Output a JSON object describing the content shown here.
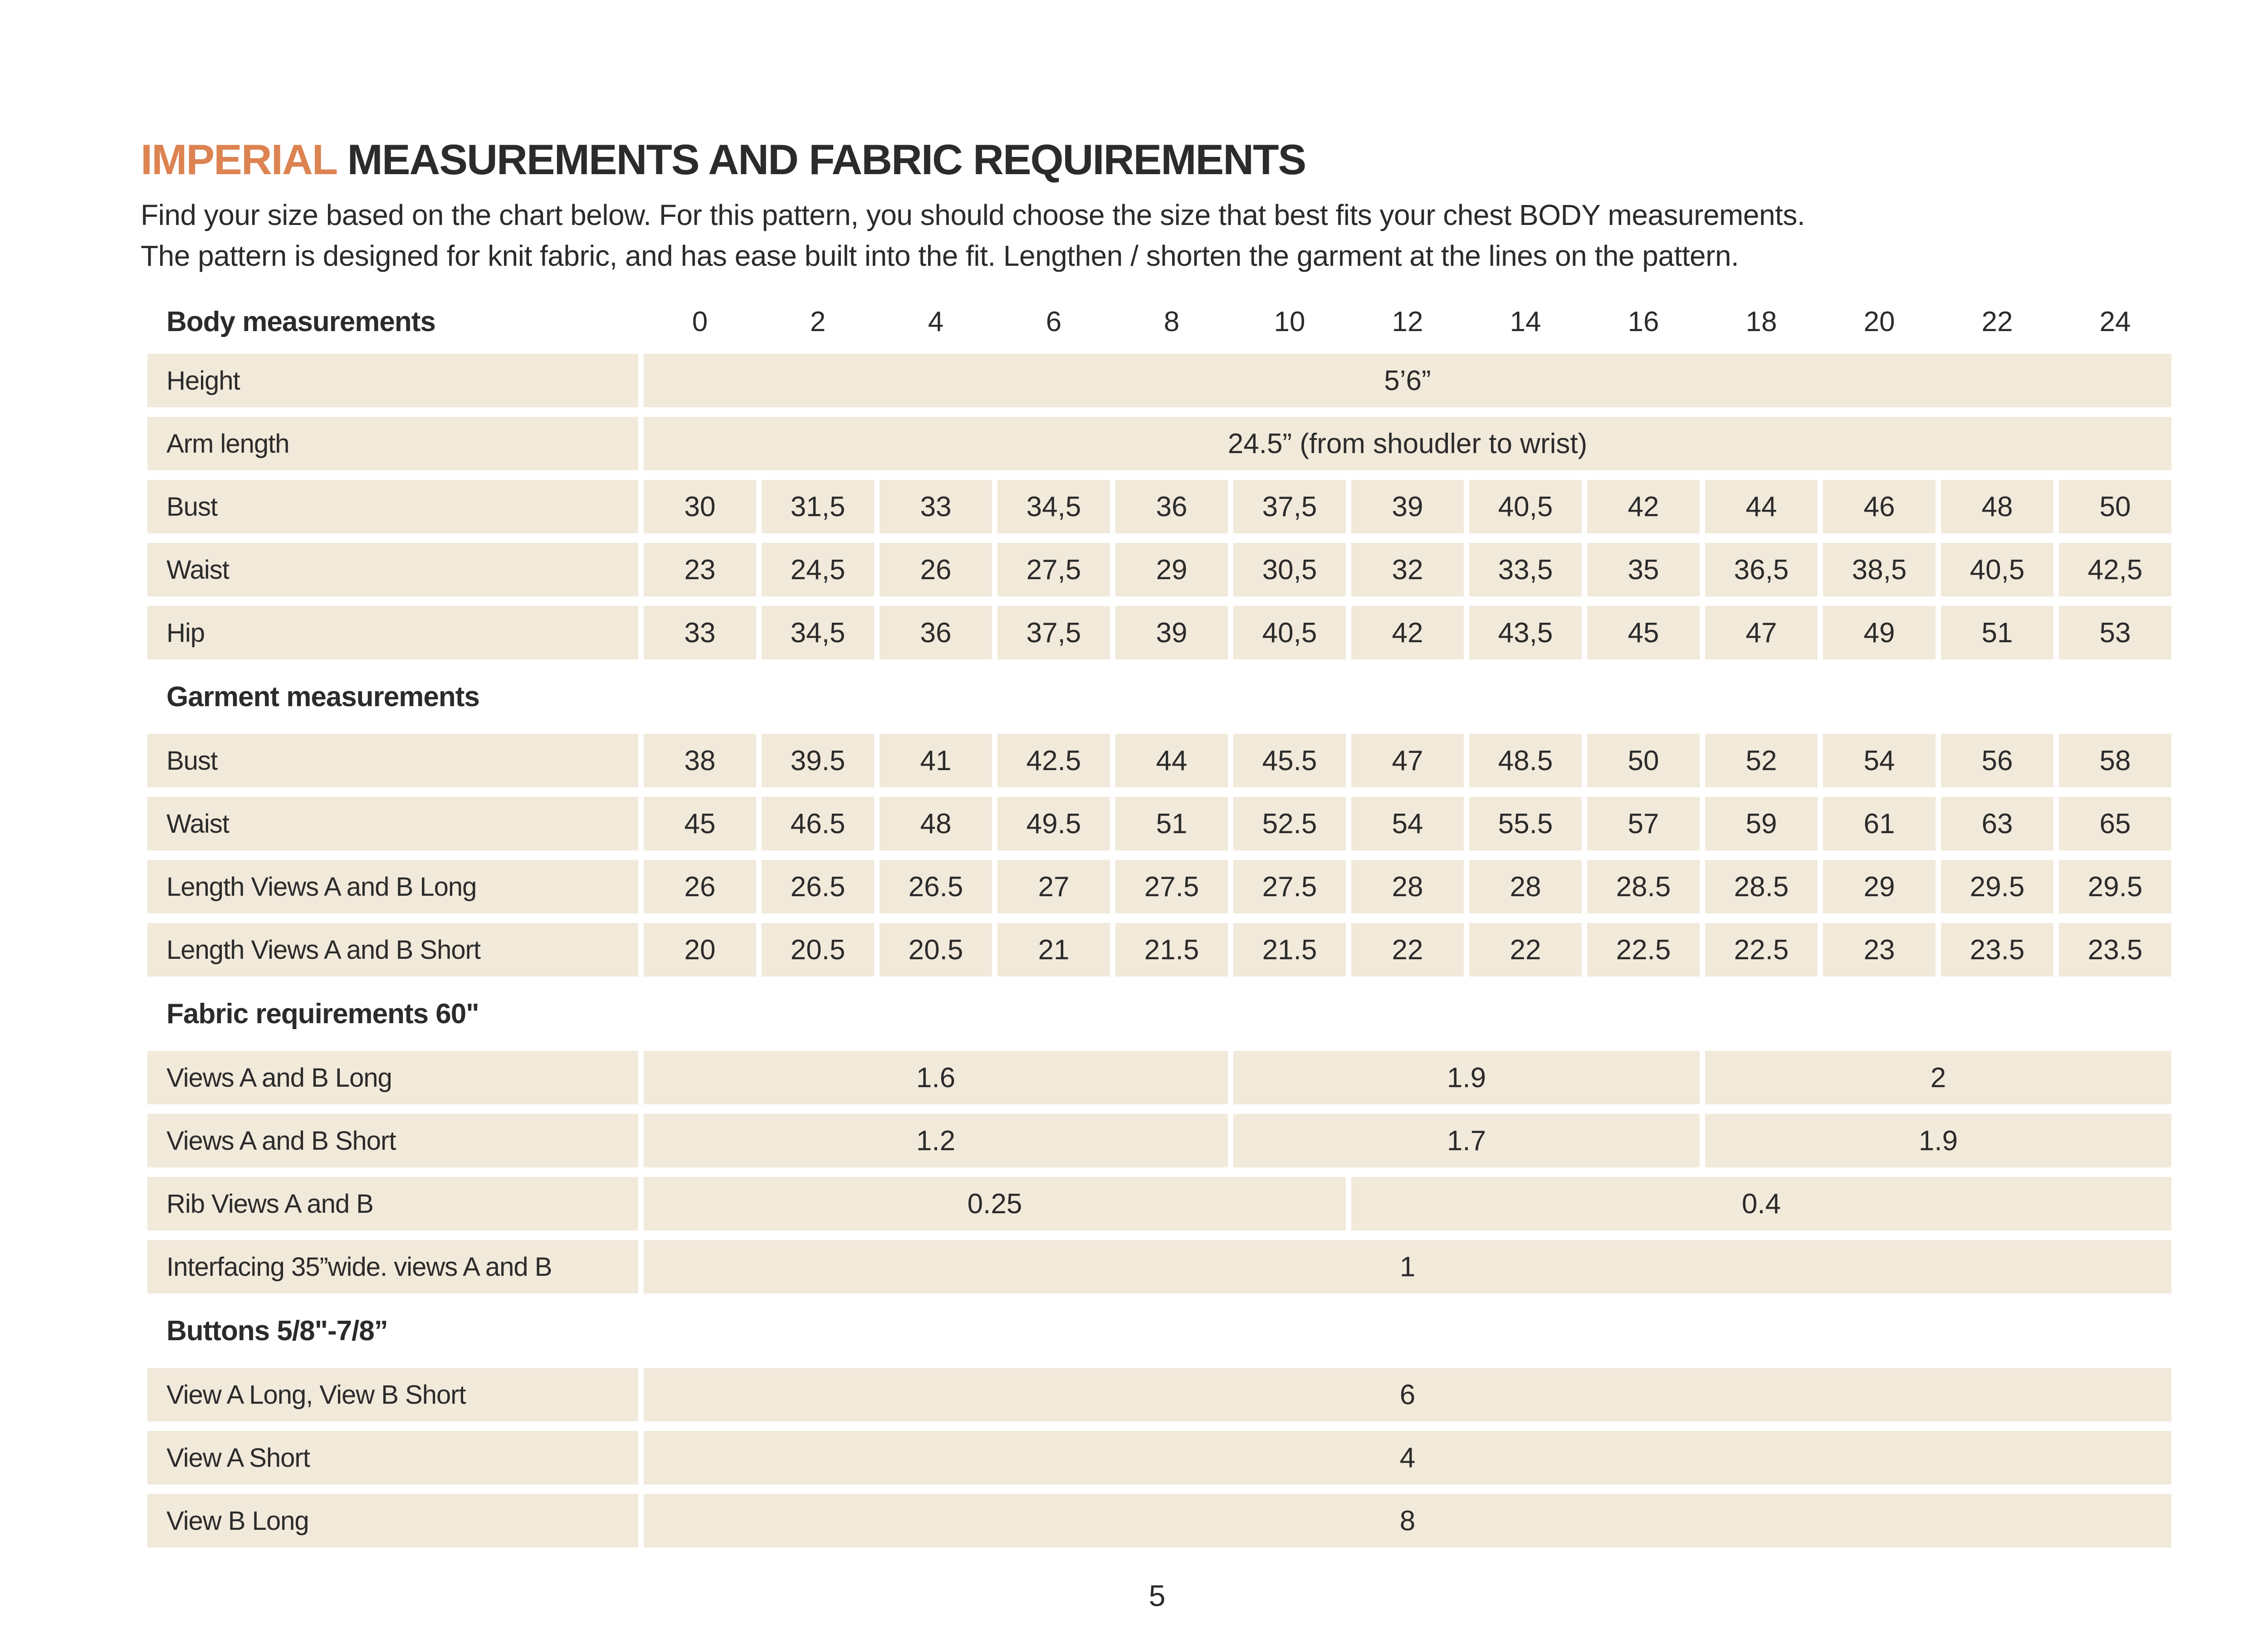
{
  "colors": {
    "accent": "#DC8351",
    "cell_background": "#F1E9DA",
    "text": "#2B2B2B"
  },
  "header": {
    "title_highlight": "IMPERIAL",
    "title_rest": " MEASUREMENTS AND FABRIC REQUIREMENTS",
    "intro_lines": [
      "Find your size based on the chart below. For this pattern, you should choose the size that best fits your chest BODY measurements.",
      "The pattern is designed for knit fabric, and has ease built into the fit. Lengthen / shorten the garment at the lines on the pattern."
    ]
  },
  "table": {
    "size_header_label": "Body measurements",
    "sizes": [
      "0",
      "2",
      "4",
      "6",
      "8",
      "10",
      "12",
      "14",
      "16",
      "18",
      "20",
      "22",
      "24"
    ],
    "rows": [
      {
        "type": "data",
        "key": "height",
        "label": "Height",
        "cells": [
          {
            "v": "5’6”",
            "span": 13
          }
        ]
      },
      {
        "type": "data",
        "key": "arm-length",
        "label": "Arm length",
        "cells": [
          {
            "v": "24.5” (from shoudler to wrist)",
            "span": 13
          }
        ]
      },
      {
        "type": "data",
        "key": "body-bust",
        "label": "Bust",
        "cells": [
          {
            "v": "30"
          },
          {
            "v": "31,5"
          },
          {
            "v": "33"
          },
          {
            "v": "34,5"
          },
          {
            "v": "36"
          },
          {
            "v": "37,5"
          },
          {
            "v": "39"
          },
          {
            "v": "40,5"
          },
          {
            "v": "42"
          },
          {
            "v": "44"
          },
          {
            "v": "46"
          },
          {
            "v": "48"
          },
          {
            "v": "50"
          }
        ]
      },
      {
        "type": "data",
        "key": "body-waist",
        "label": "Waist",
        "cells": [
          {
            "v": "23"
          },
          {
            "v": "24,5"
          },
          {
            "v": "26"
          },
          {
            "v": "27,5"
          },
          {
            "v": "29"
          },
          {
            "v": "30,5"
          },
          {
            "v": "32"
          },
          {
            "v": "33,5"
          },
          {
            "v": "35"
          },
          {
            "v": "36,5"
          },
          {
            "v": "38,5"
          },
          {
            "v": "40,5"
          },
          {
            "v": "42,5"
          }
        ]
      },
      {
        "type": "data",
        "key": "body-hip",
        "label": "Hip",
        "cells": [
          {
            "v": "33"
          },
          {
            "v": "34,5"
          },
          {
            "v": "36"
          },
          {
            "v": "37,5"
          },
          {
            "v": "39"
          },
          {
            "v": "40,5"
          },
          {
            "v": "42"
          },
          {
            "v": "43,5"
          },
          {
            "v": "45"
          },
          {
            "v": "47"
          },
          {
            "v": "49"
          },
          {
            "v": "51"
          },
          {
            "v": "53"
          }
        ]
      },
      {
        "type": "section",
        "key": "garment-measurements",
        "label": "Garment measurements"
      },
      {
        "type": "data",
        "key": "garment-bust",
        "label": "Bust",
        "cells": [
          {
            "v": "38"
          },
          {
            "v": "39.5"
          },
          {
            "v": "41"
          },
          {
            "v": "42.5"
          },
          {
            "v": "44"
          },
          {
            "v": "45.5"
          },
          {
            "v": "47"
          },
          {
            "v": "48.5"
          },
          {
            "v": "50"
          },
          {
            "v": "52"
          },
          {
            "v": "54"
          },
          {
            "v": "56"
          },
          {
            "v": "58"
          }
        ]
      },
      {
        "type": "data",
        "key": "garment-waist",
        "label": "Waist",
        "cells": [
          {
            "v": "45"
          },
          {
            "v": "46.5"
          },
          {
            "v": "48"
          },
          {
            "v": "49.5"
          },
          {
            "v": "51"
          },
          {
            "v": "52.5"
          },
          {
            "v": "54"
          },
          {
            "v": "55.5"
          },
          {
            "v": "57"
          },
          {
            "v": "59"
          },
          {
            "v": "61"
          },
          {
            "v": "63"
          },
          {
            "v": "65"
          }
        ]
      },
      {
        "type": "data",
        "key": "length-views-a-b-long",
        "label": "Length Views A and B Long",
        "cells": [
          {
            "v": "26"
          },
          {
            "v": "26.5"
          },
          {
            "v": "26.5"
          },
          {
            "v": "27"
          },
          {
            "v": "27.5"
          },
          {
            "v": "27.5"
          },
          {
            "v": "28"
          },
          {
            "v": "28"
          },
          {
            "v": "28.5"
          },
          {
            "v": "28.5"
          },
          {
            "v": "29"
          },
          {
            "v": "29.5"
          },
          {
            "v": "29.5"
          }
        ]
      },
      {
        "type": "data",
        "key": "length-views-a-b-short",
        "label": "Length Views A and B Short",
        "cells": [
          {
            "v": "20"
          },
          {
            "v": "20.5"
          },
          {
            "v": "20.5"
          },
          {
            "v": "21"
          },
          {
            "v": "21.5"
          },
          {
            "v": "21.5"
          },
          {
            "v": "22"
          },
          {
            "v": "22"
          },
          {
            "v": "22.5"
          },
          {
            "v": "22.5"
          },
          {
            "v": "23"
          },
          {
            "v": "23.5"
          },
          {
            "v": "23.5"
          }
        ]
      },
      {
        "type": "section",
        "key": "fabric-requirements",
        "label": "Fabric requirements 60\""
      },
      {
        "type": "data",
        "key": "fabric-views-a-b-long",
        "label": "Views A and B Long",
        "cells": [
          {
            "v": "1.6",
            "span": 5
          },
          {
            "v": "1.9",
            "span": 4
          },
          {
            "v": "2",
            "span": 4
          }
        ]
      },
      {
        "type": "data",
        "key": "fabric-views-a-b-short",
        "label": "Views A and B Short",
        "cells": [
          {
            "v": "1.2",
            "span": 5
          },
          {
            "v": "1.7",
            "span": 4
          },
          {
            "v": "1.9",
            "span": 4
          }
        ]
      },
      {
        "type": "data",
        "key": "rib-views-a-b",
        "label": "Rib Views A and B",
        "cells": [
          {
            "v": "0.25",
            "span": 6
          },
          {
            "v": "0.4",
            "span": 7
          }
        ]
      },
      {
        "type": "data",
        "key": "interfacing",
        "label": "Interfacing 35”wide. views A and B",
        "cells": [
          {
            "v": "1",
            "span": 13
          }
        ]
      },
      {
        "type": "section",
        "key": "buttons",
        "label": "Buttons 5/8\"-7/8”"
      },
      {
        "type": "data",
        "key": "buttons-view-a-long-b-short",
        "label": "View A Long, View B Short",
        "cells": [
          {
            "v": "6",
            "span": 13
          }
        ]
      },
      {
        "type": "data",
        "key": "buttons-view-a-short",
        "label": "View A Short",
        "cells": [
          {
            "v": "4",
            "span": 13
          }
        ]
      },
      {
        "type": "data",
        "key": "buttons-view-b-long",
        "label": "View B Long",
        "cells": [
          {
            "v": "8",
            "span": 13
          }
        ]
      }
    ]
  },
  "footer": {
    "page_number": "5"
  }
}
